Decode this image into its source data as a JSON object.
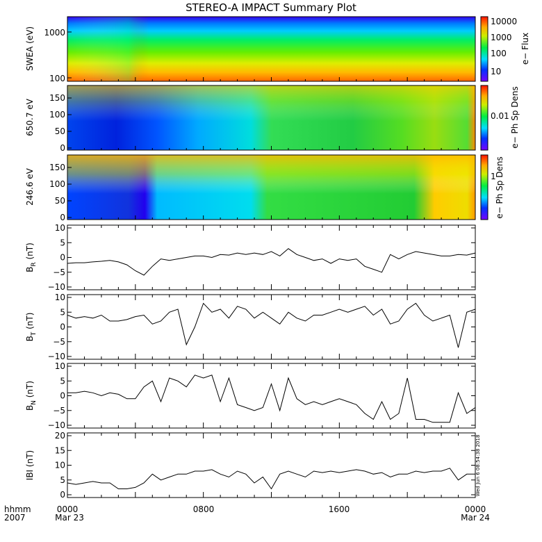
{
  "title": "STEREO-A IMPACT Summary Plot",
  "colors": {
    "line": "#000000",
    "background": "#ffffff"
  },
  "chart_data": [
    {
      "type": "heatmap",
      "ylabel": "SWEA (eV)",
      "colorbar_label": "e− Flux",
      "colorbar_ticks": [
        "10",
        "100",
        "1000",
        "10000"
      ],
      "y_scale": "log",
      "y_ticks": [
        "100",
        "1000"
      ]
    },
    {
      "type": "heatmap",
      "ylabel": "650.7 eV",
      "colorbar_label": "e− Ph Sp Dens",
      "colorbar_ticks": [
        "0.01"
      ],
      "ylim": [
        0,
        180
      ],
      "y_ticks": [
        "0",
        "50",
        "100",
        "150"
      ]
    },
    {
      "type": "heatmap",
      "ylabel": "246.6 eV",
      "colorbar_label": "e− Ph Sp Dens",
      "colorbar_ticks": [
        "1"
      ],
      "ylim": [
        0,
        180
      ],
      "y_ticks": [
        "0",
        "50",
        "100",
        "150"
      ]
    },
    {
      "type": "line",
      "ylabel": "B",
      "ylabel_sub": "R",
      "ylabel_unit": " (nT)",
      "ylim": [
        -10,
        10
      ],
      "y_ticks": [
        "−10",
        "−5",
        "0",
        "5",
        "10"
      ],
      "x_hours": [
        0,
        0.5,
        1,
        1.5,
        2,
        2.5,
        3,
        3.5,
        4,
        4.5,
        5,
        5.5,
        6,
        6.5,
        7,
        7.5,
        8,
        8.5,
        9,
        9.5,
        10,
        10.5,
        11,
        11.5,
        12,
        12.5,
        13,
        13.5,
        14,
        14.5,
        15,
        15.5,
        16,
        16.5,
        17,
        17.5,
        18,
        18.5,
        19,
        19.5,
        20,
        20.5,
        21,
        21.5,
        22,
        22.5,
        23,
        23.5,
        24
      ],
      "values": [
        -2,
        -1.8,
        -1.8,
        -1.5,
        -1.3,
        -1,
        -1.5,
        -2.5,
        -4.5,
        -6,
        -3,
        -0.5,
        -1,
        -0.5,
        0,
        0.5,
        0.5,
        0,
        1,
        0.8,
        1.5,
        1,
        1.5,
        1,
        2,
        0.5,
        3,
        1,
        0,
        -1,
        -0.5,
        -2,
        -0.5,
        -1,
        -0.5,
        -3,
        -4,
        -5,
        1,
        -0.5,
        1,
        2,
        1.5,
        1,
        0.5,
        0.5,
        1,
        0.8,
        1.5
      ]
    },
    {
      "type": "line",
      "ylabel": "B",
      "ylabel_sub": "T",
      "ylabel_unit": " (nT)",
      "ylim": [
        -10,
        10
      ],
      "y_ticks": [
        "−10",
        "−5",
        "0",
        "5",
        "10"
      ],
      "x_hours": [
        0,
        0.5,
        1,
        1.5,
        2,
        2.5,
        3,
        3.5,
        4,
        4.5,
        5,
        5.5,
        6,
        6.5,
        7,
        7.5,
        8,
        8.5,
        9,
        9.5,
        10,
        10.5,
        11,
        11.5,
        12,
        12.5,
        13,
        13.5,
        14,
        14.5,
        15,
        15.5,
        16,
        16.5,
        17,
        17.5,
        18,
        18.5,
        19,
        19.5,
        20,
        20.5,
        21,
        21.5,
        22,
        22.5,
        23,
        23.5,
        24
      ],
      "values": [
        4,
        3,
        3.5,
        3,
        4,
        2,
        2,
        2.5,
        3.5,
        4,
        1,
        2,
        5,
        6,
        -6,
        0,
        8,
        5,
        6,
        3,
        7,
        6,
        3,
        5,
        3,
        1,
        5,
        3,
        2,
        4,
        4,
        5,
        6,
        5,
        6,
        7,
        4,
        6,
        1,
        2,
        6,
        8,
        4,
        2,
        3,
        4,
        -7,
        5,
        6
      ]
    },
    {
      "type": "line",
      "ylabel": "B",
      "ylabel_sub": "N",
      "ylabel_unit": " (nT)",
      "ylim": [
        -10,
        10
      ],
      "y_ticks": [
        "−10",
        "−5",
        "0",
        "5",
        "10"
      ],
      "x_hours": [
        0,
        0.5,
        1,
        1.5,
        2,
        2.5,
        3,
        3.5,
        4,
        4.5,
        5,
        5.5,
        6,
        6.5,
        7,
        7.5,
        8,
        8.5,
        9,
        9.5,
        10,
        10.5,
        11,
        11.5,
        12,
        12.5,
        13,
        13.5,
        14,
        14.5,
        15,
        15.5,
        16,
        16.5,
        17,
        17.5,
        18,
        18.5,
        19,
        19.5,
        20,
        20.5,
        21,
        21.5,
        22,
        22.5,
        23,
        23.5,
        24
      ],
      "values": [
        1,
        1,
        1.5,
        1,
        0,
        1,
        0.5,
        -1,
        -1,
        3,
        5,
        -2,
        6,
        5,
        3,
        7,
        6,
        7,
        -2,
        6,
        -3,
        -4,
        -5,
        -4,
        4,
        -5,
        6,
        -1,
        -3,
        -2,
        -3,
        -2,
        -1,
        -2,
        -3,
        -6,
        -8,
        -2,
        -8,
        -6,
        6,
        -8,
        -8,
        -9,
        -9,
        -9,
        1,
        -6,
        -4
      ]
    },
    {
      "type": "line",
      "ylabel": "IBI",
      "ylabel_unit": " (nT)",
      "ylim": [
        0,
        20
      ],
      "y_ticks": [
        "0",
        "5",
        "10",
        "15",
        "20"
      ],
      "x_hours": [
        0,
        0.5,
        1,
        1.5,
        2,
        2.5,
        3,
        3.5,
        4,
        4.5,
        5,
        5.5,
        6,
        6.5,
        7,
        7.5,
        8,
        8.5,
        9,
        9.5,
        10,
        10.5,
        11,
        11.5,
        12,
        12.5,
        13,
        13.5,
        14,
        14.5,
        15,
        15.5,
        16,
        16.5,
        17,
        17.5,
        18,
        18.5,
        19,
        19.5,
        20,
        20.5,
        21,
        21.5,
        22,
        22.5,
        23,
        23.5,
        24
      ],
      "values": [
        4,
        3.5,
        4,
        4.5,
        4,
        4,
        2,
        2,
        2.5,
        4,
        7,
        5,
        6,
        7,
        7,
        8,
        8,
        8.5,
        7,
        6,
        8,
        7,
        4,
        6,
        2,
        7,
        8,
        7,
        6,
        8,
        7.5,
        8,
        7.5,
        8,
        8.5,
        8,
        7,
        7.5,
        6,
        7,
        7,
        8,
        7.5,
        8,
        8,
        9,
        5,
        7,
        7
      ]
    }
  ],
  "x_axis": {
    "row1_label": "hhmm",
    "row2_label": "2007",
    "ticks": [
      {
        "hour": 0,
        "time": "0000",
        "date": "Mar 23"
      },
      {
        "hour": 8,
        "time": "0800",
        "date": ""
      },
      {
        "hour": 16,
        "time": "1600",
        "date": ""
      },
      {
        "hour": 24,
        "time": "0000",
        "date": "Mar 24"
      }
    ]
  },
  "timestamp": "Wed Jun  6 08:54:38 2018"
}
